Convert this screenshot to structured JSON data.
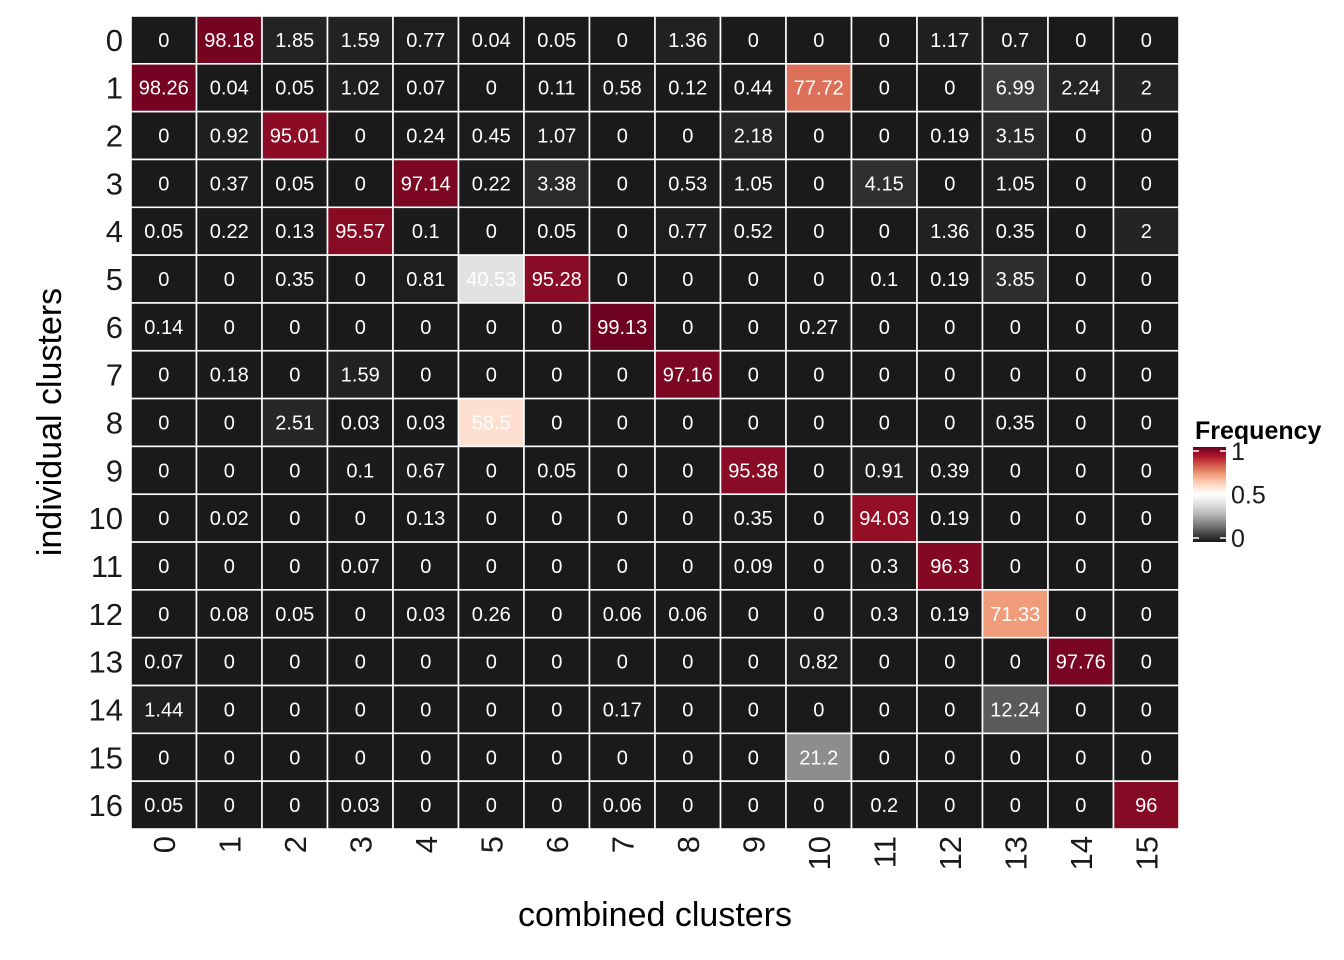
{
  "chart_data": {
    "type": "heatmap",
    "title": "",
    "xlabel": "combined clusters",
    "ylabel": "individual clusters",
    "x_categories": [
      "0",
      "1",
      "2",
      "3",
      "4",
      "5",
      "6",
      "7",
      "8",
      "9",
      "10",
      "11",
      "12",
      "13",
      "14",
      "15"
    ],
    "y_categories": [
      "0",
      "1",
      "2",
      "3",
      "4",
      "5",
      "6",
      "7",
      "8",
      "9",
      "10",
      "11",
      "12",
      "13",
      "14",
      "15",
      "16"
    ],
    "values": [
      [
        0,
        98.18,
        1.85,
        1.59,
        0.77,
        0.04,
        0.05,
        0,
        1.36,
        0,
        0,
        0,
        1.17,
        0.7,
        0,
        0
      ],
      [
        98.26,
        0.04,
        0.05,
        1.02,
        0.07,
        0,
        0.11,
        0.58,
        0.12,
        0.44,
        77.72,
        0,
        0,
        6.99,
        2.24,
        2
      ],
      [
        0,
        0.92,
        95.01,
        0,
        0.24,
        0.45,
        1.07,
        0,
        0,
        2.18,
        0,
        0,
        0.19,
        3.15,
        0,
        0
      ],
      [
        0,
        0.37,
        0.05,
        0,
        97.14,
        0.22,
        3.38,
        0,
        0.53,
        1.05,
        0,
        4.15,
        0,
        1.05,
        0,
        0
      ],
      [
        0.05,
        0.22,
        0.13,
        95.57,
        0.1,
        0,
        0.05,
        0,
        0.77,
        0.52,
        0,
        0,
        1.36,
        0.35,
        0,
        2
      ],
      [
        0,
        0,
        0.35,
        0,
        0.81,
        40.53,
        95.28,
        0,
        0,
        0,
        0,
        0.1,
        0.19,
        3.85,
        0,
        0
      ],
      [
        0.14,
        0,
        0,
        0,
        0,
        0,
        0,
        99.13,
        0,
        0,
        0.27,
        0,
        0,
        0,
        0,
        0
      ],
      [
        0,
        0.18,
        0,
        1.59,
        0,
        0,
        0,
        0,
        97.16,
        0,
        0,
        0,
        0,
        0,
        0,
        0
      ],
      [
        0,
        0,
        2.51,
        0.03,
        0.03,
        58.5,
        0,
        0,
        0,
        0,
        0,
        0,
        0,
        0.35,
        0,
        0
      ],
      [
        0,
        0,
        0,
        0.1,
        0.67,
        0,
        0.05,
        0,
        0,
        95.38,
        0,
        0.91,
        0.39,
        0,
        0,
        0
      ],
      [
        0,
        0.02,
        0,
        0,
        0.13,
        0,
        0,
        0,
        0,
        0.35,
        0,
        94.03,
        0.19,
        0,
        0,
        0
      ],
      [
        0,
        0,
        0,
        0.07,
        0,
        0,
        0,
        0,
        0,
        0.09,
        0,
        0.3,
        96.3,
        0,
        0,
        0
      ],
      [
        0,
        0.08,
        0.05,
        0,
        0.03,
        0.26,
        0,
        0.06,
        0.06,
        0,
        0,
        0.3,
        0.19,
        71.33,
        0,
        0
      ],
      [
        0.07,
        0,
        0,
        0,
        0,
        0,
        0,
        0,
        0,
        0,
        0.82,
        0,
        0,
        0,
        97.76,
        0
      ],
      [
        1.44,
        0,
        0,
        0,
        0,
        0,
        0,
        0.17,
        0,
        0,
        0,
        0,
        0,
        12.24,
        0,
        0
      ],
      [
        0,
        0,
        0,
        0,
        0,
        0,
        0,
        0,
        0,
        0,
        21.2,
        0,
        0,
        0,
        0,
        0
      ],
      [
        0.05,
        0,
        0,
        0.03,
        0,
        0,
        0,
        0.06,
        0,
        0,
        0,
        0.2,
        0,
        0,
        0,
        96
      ]
    ],
    "value_scale": 100,
    "legend": {
      "title": "Frequency",
      "position": "right",
      "range": [
        0,
        1
      ],
      "ticks": [
        "0",
        "0.5",
        "1"
      ],
      "tick_values": [
        0,
        0.5,
        1
      ]
    },
    "colors": [
      "#1a1a1a",
      "#4d4d4d",
      "#878787",
      "#bababa",
      "#e0e0e0",
      "#ffffff",
      "#fddbc7",
      "#f4a582",
      "#d6604d",
      "#b2182b",
      "#67001f"
    ],
    "cell_border": "#ffffff",
    "label_color": "#ffffff",
    "grid": false
  }
}
